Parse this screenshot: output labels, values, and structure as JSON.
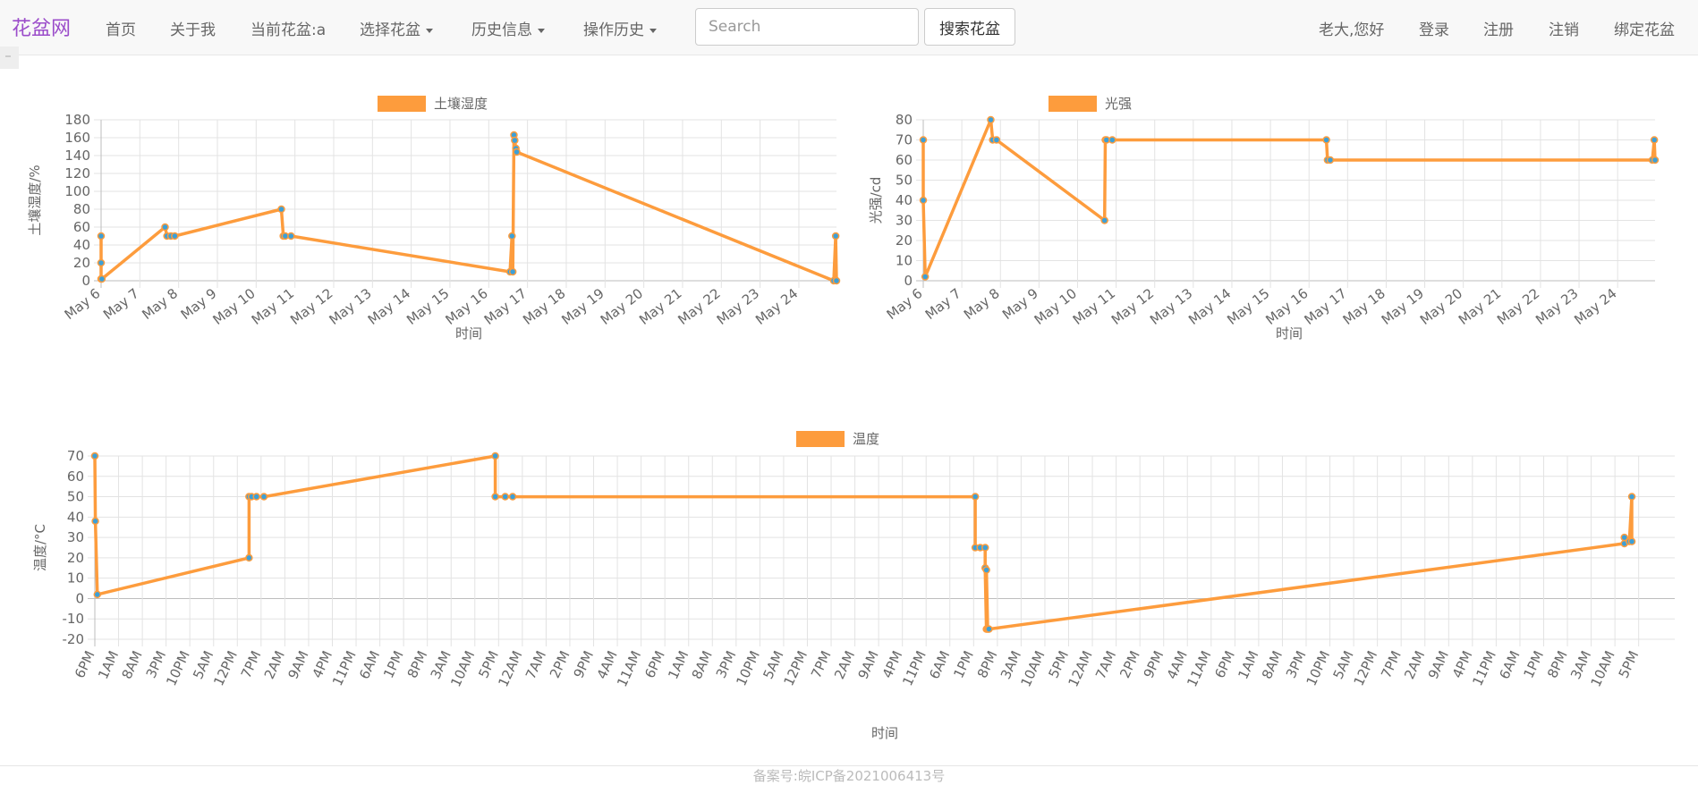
{
  "navbar": {
    "brand": "花盆网",
    "items": [
      {
        "label": "首页",
        "dropdown": false
      },
      {
        "label": "关于我",
        "dropdown": false
      },
      {
        "label": "当前花盆:a",
        "dropdown": false
      },
      {
        "label": "选择花盆",
        "dropdown": true
      },
      {
        "label": "历史信息",
        "dropdown": true
      },
      {
        "label": "操作历史",
        "dropdown": true
      }
    ],
    "search_placeholder": "Search",
    "search_button": "搜索花盆",
    "right_items": [
      "老大,您好",
      "登录",
      "注册",
      "注销",
      "绑定花盆"
    ]
  },
  "colors": {
    "line": "#fd9c3d",
    "point": "#3ca0d8",
    "brand": "#9b4dca",
    "grid": "#e3e3e3"
  },
  "footer": "备案号:皖ICP备2021006413号",
  "chart_data": [
    {
      "type": "line",
      "legend": "土壤湿度",
      "ylabel": "土壤湿度/%",
      "xlabel": "时间",
      "ylim": [
        0,
        180
      ],
      "yticks": [
        0,
        20,
        40,
        60,
        80,
        100,
        120,
        140,
        160,
        180
      ],
      "x_ticks": [
        "May 6",
        "May 7",
        "May 8",
        "May 9",
        "May 10",
        "May 11",
        "May 12",
        "May 13",
        "May 14",
        "May 15",
        "May 16",
        "May 17",
        "May 18",
        "May 19",
        "May 20",
        "May 21",
        "May 22",
        "May 23",
        "May 24"
      ],
      "x": [
        6.0,
        6.0,
        6.0,
        6.02,
        7.65,
        7.7,
        7.8,
        7.9,
        10.65,
        10.7,
        10.75,
        10.9,
        16.55,
        16.6,
        16.62,
        16.65,
        16.67,
        16.7,
        16.72,
        24.9,
        24.95,
        24.97
      ],
      "values": [
        50,
        20,
        2,
        2,
        60,
        50,
        50,
        50,
        80,
        50,
        50,
        50,
        10,
        50,
        10,
        163,
        157,
        148,
        144,
        0,
        50,
        0
      ]
    },
    {
      "type": "line",
      "legend": "光强",
      "ylabel": "光强/cd",
      "xlabel": "时间",
      "ylim": [
        0,
        80
      ],
      "yticks": [
        0,
        10,
        20,
        30,
        40,
        50,
        60,
        70,
        80
      ],
      "x_ticks": [
        "May 6",
        "May 7",
        "May 8",
        "May 9",
        "May 10",
        "May 11",
        "May 12",
        "May 13",
        "May 14",
        "May 15",
        "May 16",
        "May 17",
        "May 18",
        "May 19",
        "May 20",
        "May 21",
        "May 22",
        "May 23",
        "May 24"
      ],
      "x": [
        6.0,
        6.0,
        6.05,
        7.75,
        7.8,
        7.9,
        10.7,
        10.72,
        10.75,
        10.9,
        16.45,
        16.48,
        16.55,
        24.9,
        24.95,
        24.97
      ],
      "values": [
        70,
        40,
        2,
        80,
        70,
        70,
        30,
        70,
        70,
        70,
        70,
        60,
        60,
        60,
        70,
        60
      ]
    },
    {
      "type": "line",
      "legend": "温度",
      "ylabel": "温度/°C",
      "xlabel": "时间",
      "ylim": [
        -20,
        70
      ],
      "yticks": [
        -20,
        -10,
        0,
        10,
        20,
        30,
        40,
        50,
        60,
        70
      ],
      "x_ticks": [
        "6PM",
        "1AM",
        "8AM",
        "3PM",
        "10PM",
        "5AM",
        "12PM",
        "7PM",
        "2AM",
        "9AM",
        "4PM",
        "11PM",
        "6AM",
        "1PM",
        "8PM",
        "3AM",
        "10AM",
        "5PM",
        "12AM",
        "7AM",
        "2PM",
        "9PM",
        "4AM",
        "11AM",
        "6PM",
        "1AM",
        "8AM",
        "3PM",
        "10PM",
        "5AM",
        "12PM",
        "7PM",
        "2AM",
        "9AM",
        "4PM",
        "11PM",
        "6AM",
        "1PM",
        "8PM",
        "3AM",
        "10AM",
        "5PM",
        "12AM",
        "7AM",
        "2PM",
        "9PM",
        "4AM",
        "11AM",
        "6PM",
        "1AM",
        "8AM",
        "3PM",
        "10PM",
        "5AM",
        "12PM",
        "7PM",
        "2AM",
        "9AM",
        "4PM",
        "11PM",
        "6AM",
        "1PM",
        "8PM",
        "3AM",
        "10AM",
        "5PM"
      ],
      "x": [
        0.0,
        0.02,
        0.1,
        6.2,
        6.2,
        6.3,
        6.5,
        6.8,
        16.1,
        16.1,
        16.5,
        16.8,
        35.4,
        35.4,
        35.6,
        35.8,
        35.8,
        35.85,
        35.85,
        35.9,
        35.95,
        61.5,
        61.5,
        61.7,
        61.8,
        61.8
      ],
      "values": [
        70,
        38,
        2,
        20,
        50,
        50,
        50,
        50,
        70,
        50,
        50,
        50,
        50,
        25,
        25,
        25,
        15,
        -15,
        14,
        -15,
        -15,
        27,
        30,
        28,
        50,
        28
      ]
    }
  ]
}
